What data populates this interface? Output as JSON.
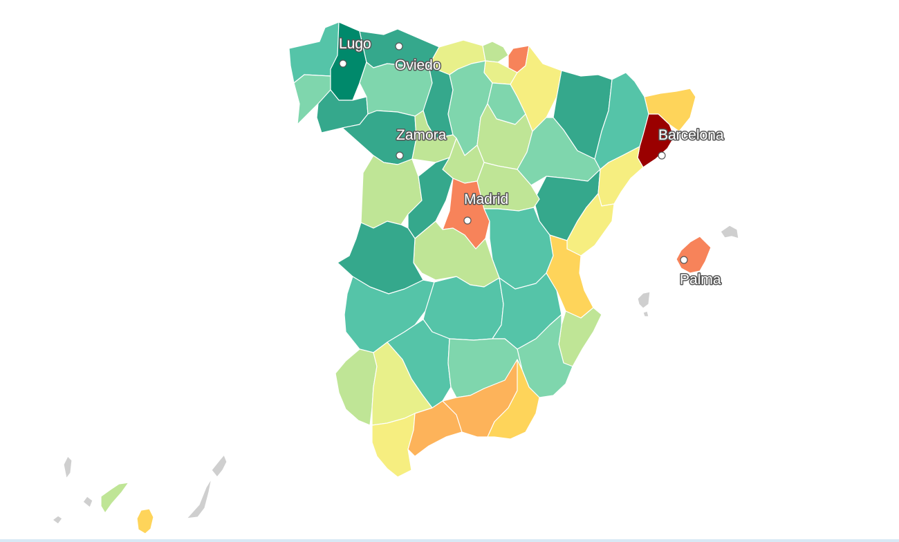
{
  "map": {
    "palette": {
      "dark_green": "#00896b",
      "green": "#35a88c",
      "teal": "#55c4a8",
      "mint": "#7fd6ad",
      "light_green": "#bfe596",
      "pale_yellow": "#e8f08a",
      "yellow": "#f6ee80",
      "gold": "#fed45a",
      "orange": "#fdb35a",
      "salmon": "#f7835a",
      "dark_red": "#9a0000",
      "grey": "#cfcfcf"
    },
    "cities": [
      {
        "name": "Lugo"
      },
      {
        "name": "Oviedo"
      },
      {
        "name": "Zamora"
      },
      {
        "name": "Madrid"
      },
      {
        "name": "Barcelona"
      },
      {
        "name": "Palma"
      }
    ]
  }
}
